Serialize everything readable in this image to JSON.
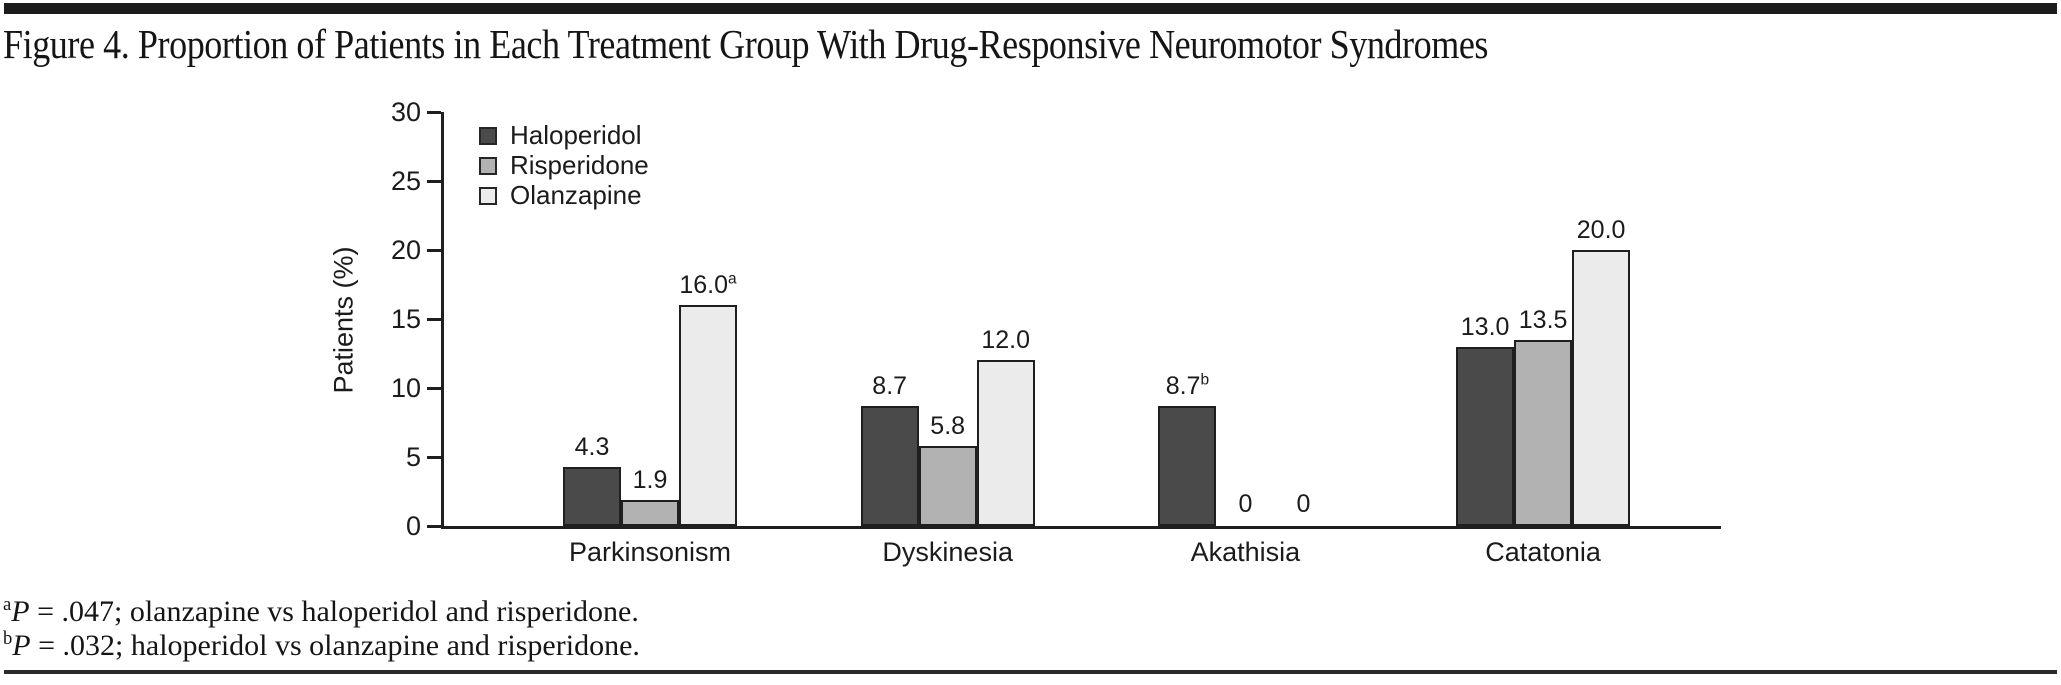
{
  "page": {
    "title": "Figure 4. Proportion of Patients in Each Treatment Group With Drug-Responsive Neuromotor Syndromes"
  },
  "chart_data": {
    "type": "bar",
    "title": "Figure 4. Proportion of Patients in Each Treatment Group With Drug-Responsive Neuromotor Syndromes",
    "categories": [
      "Parkinsonism",
      "Dyskinesia",
      "Akathisia",
      "Catatonia"
    ],
    "series": [
      {
        "name": "Haloperidol",
        "color": "#4a4a4a",
        "values": [
          4.3,
          8.7,
          8.7,
          13.0
        ],
        "labels": [
          "4.3",
          "8.7",
          "8.7",
          "13.0"
        ],
        "label_sups": [
          "",
          "",
          "b",
          ""
        ]
      },
      {
        "name": "Risperidone",
        "color": "#b2b2b2",
        "values": [
          1.9,
          5.8,
          0,
          13.5
        ],
        "labels": [
          "1.9",
          "5.8",
          "0",
          "13.5"
        ],
        "label_sups": [
          "",
          "",
          "",
          ""
        ]
      },
      {
        "name": "Olanzapine",
        "color": "#ebebeb",
        "values": [
          16.0,
          12.0,
          0,
          20.0
        ],
        "labels": [
          "16.0",
          "12.0",
          "0",
          "20.0"
        ],
        "label_sups": [
          "a",
          "",
          "",
          ""
        ]
      }
    ],
    "xlabel": "",
    "ylabel": "Patients (%)",
    "ylim": [
      0,
      30
    ],
    "yticks": [
      0,
      5,
      10,
      15,
      20,
      25,
      30
    ],
    "grid": false,
    "legend_position": "upper-left",
    "bar_outline_color": "#1f1f1f",
    "axis_color": "#1f1f1f"
  },
  "footnotes": [
    {
      "sup": "a",
      "p_label": "P",
      "text": " = .047; olanzapine vs haloperidol and risperidone."
    },
    {
      "sup": "b",
      "p_label": "P",
      "text": " = .032; haloperidol vs olanzapine and risperidone."
    }
  ]
}
